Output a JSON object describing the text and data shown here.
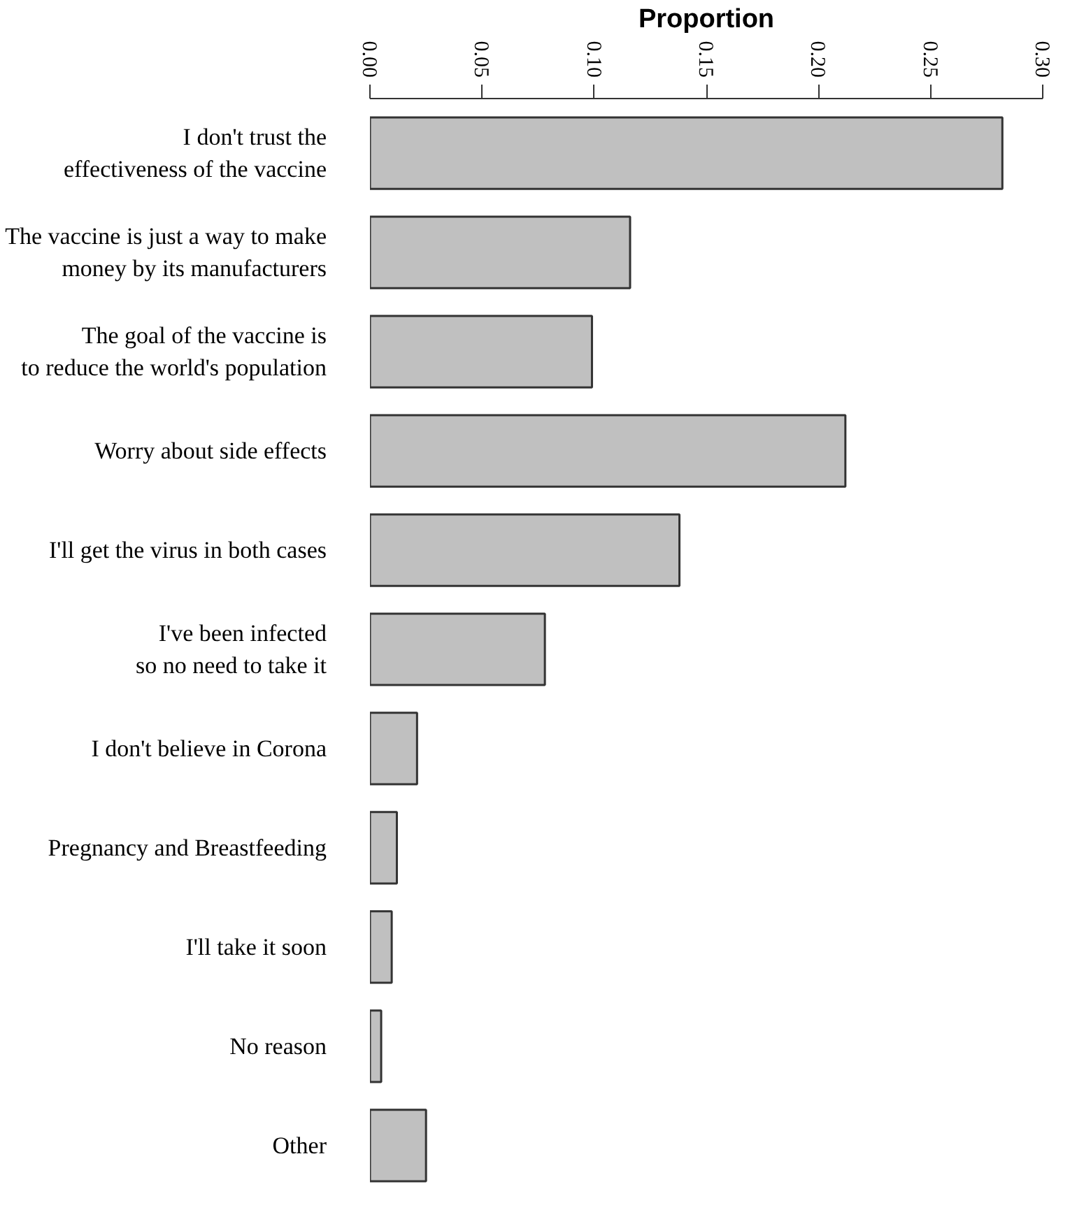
{
  "chart_data": {
    "type": "bar",
    "orientation": "horizontal",
    "xlabel": "Proportion",
    "categories": [
      "I don't trust the\neffectiveness of the vaccine",
      "The vaccine is just a way to make\nmoney by its manufacturers",
      "The goal of the vaccine is\nto reduce the world's population",
      "Worry about side effects",
      "I'll get the virus in both cases",
      "I've been infected\nso no need to take it",
      "I don't believe in Corona",
      "Pregnancy and Breastfeeding",
      "I'll take it soon",
      "No reason",
      "Other"
    ],
    "values": [
      0.282,
      0.116,
      0.099,
      0.212,
      0.138,
      0.078,
      0.021,
      0.012,
      0.0097,
      0.005,
      0.025
    ],
    "color": "#c0c0c0",
    "xlim": [
      0,
      0.3
    ],
    "xticks": [
      {
        "value": 0,
        "label": "0.00"
      },
      0.05,
      {
        "value": 0.1,
        "label": "0.10"
      },
      0.15,
      {
        "value": 0.2,
        "label": "0.20"
      },
      0.25,
      {
        "value": 0.3,
        "label": "0.30"
      }
    ],
    "grid": false
  }
}
